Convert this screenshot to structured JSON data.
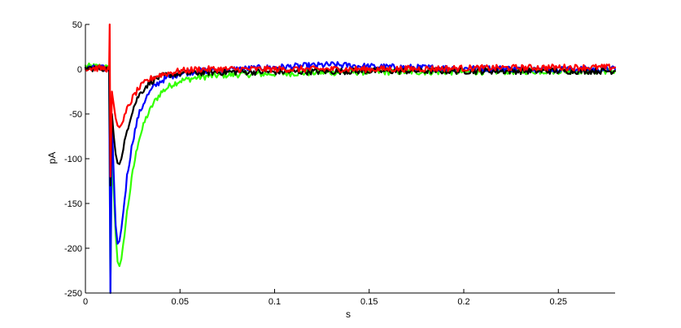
{
  "chart_data": {
    "type": "line",
    "title": "",
    "xlabel": "s",
    "ylabel": "pA",
    "xlim": [
      0,
      0.28
    ],
    "ylim": [
      -250,
      50
    ],
    "x_ticks": [
      0,
      0.05,
      0.1,
      0.15,
      0.2,
      0.25
    ],
    "x_tick_labels": [
      "0",
      "0.05",
      "0.1",
      "0.15",
      "0.2",
      "0.25"
    ],
    "y_ticks": [
      -250,
      -200,
      -150,
      -100,
      -50,
      0,
      50
    ],
    "y_tick_labels": [
      "-250",
      "-200",
      "-150",
      "-100",
      "-50",
      "0",
      "50"
    ],
    "grid": false,
    "legend": false,
    "series": [
      {
        "color": "#33ff00",
        "x": [
          0,
          0.01,
          0.0125,
          0.0132,
          0.014,
          0.015,
          0.016,
          0.017,
          0.018,
          0.019,
          0.02,
          0.022,
          0.025,
          0.028,
          0.032,
          0.036,
          0.04,
          0.045,
          0.05,
          0.06,
          0.07,
          0.08,
          0.1,
          0.12,
          0.15,
          0.2,
          0.25,
          0.28
        ],
        "y": [
          3,
          3,
          0,
          -250,
          -90,
          -140,
          -185,
          -215,
          -220,
          -212,
          -195,
          -160,
          -115,
          -80,
          -55,
          -38,
          -26,
          -18,
          -13,
          -9,
          -7,
          -6,
          -5,
          -4,
          -3,
          -3,
          -2,
          -2
        ]
      },
      {
        "color": "#0000ff",
        "x": [
          0,
          0.01,
          0.0125,
          0.0132,
          0.014,
          0.015,
          0.016,
          0.017,
          0.018,
          0.019,
          0.02,
          0.022,
          0.025,
          0.028,
          0.032,
          0.036,
          0.04,
          0.045,
          0.05,
          0.06,
          0.08,
          0.1,
          0.12,
          0.13,
          0.15,
          0.17,
          0.2,
          0.25,
          0.28
        ],
        "y": [
          1,
          1,
          0,
          -250,
          -55,
          -120,
          -175,
          -195,
          -192,
          -178,
          -160,
          -120,
          -80,
          -52,
          -32,
          -20,
          -13,
          -8,
          -5,
          -2,
          0,
          2,
          4,
          5,
          3,
          2,
          1,
          0,
          0
        ]
      },
      {
        "color": "#000000",
        "x": [
          0,
          0.01,
          0.0125,
          0.0132,
          0.014,
          0.015,
          0.016,
          0.017,
          0.018,
          0.019,
          0.02,
          0.022,
          0.025,
          0.028,
          0.032,
          0.036,
          0.04,
          0.045,
          0.05,
          0.06,
          0.08,
          0.1,
          0.15,
          0.2,
          0.25,
          0.28
        ],
        "y": [
          1,
          1,
          0,
          -130,
          -50,
          -75,
          -95,
          -105,
          -106,
          -100,
          -90,
          -68,
          -45,
          -30,
          -19,
          -12,
          -8,
          -6,
          -5,
          -4,
          -3,
          -3,
          -2,
          -2,
          -2,
          -2
        ]
      },
      {
        "color": "#ff0000",
        "x": [
          0,
          0.01,
          0.0125,
          0.0128,
          0.0132,
          0.014,
          0.015,
          0.016,
          0.017,
          0.018,
          0.019,
          0.02,
          0.022,
          0.025,
          0.028,
          0.032,
          0.036,
          0.04,
          0.045,
          0.05,
          0.06,
          0.08,
          0.1,
          0.15,
          0.2,
          0.25,
          0.28
        ],
        "y": [
          1,
          1,
          0,
          50,
          -120,
          -25,
          -40,
          -55,
          -63,
          -65,
          -62,
          -58,
          -45,
          -32,
          -22,
          -14,
          -9,
          -6,
          -4,
          -2,
          0,
          0,
          0,
          0,
          1,
          2,
          2
        ]
      }
    ]
  }
}
